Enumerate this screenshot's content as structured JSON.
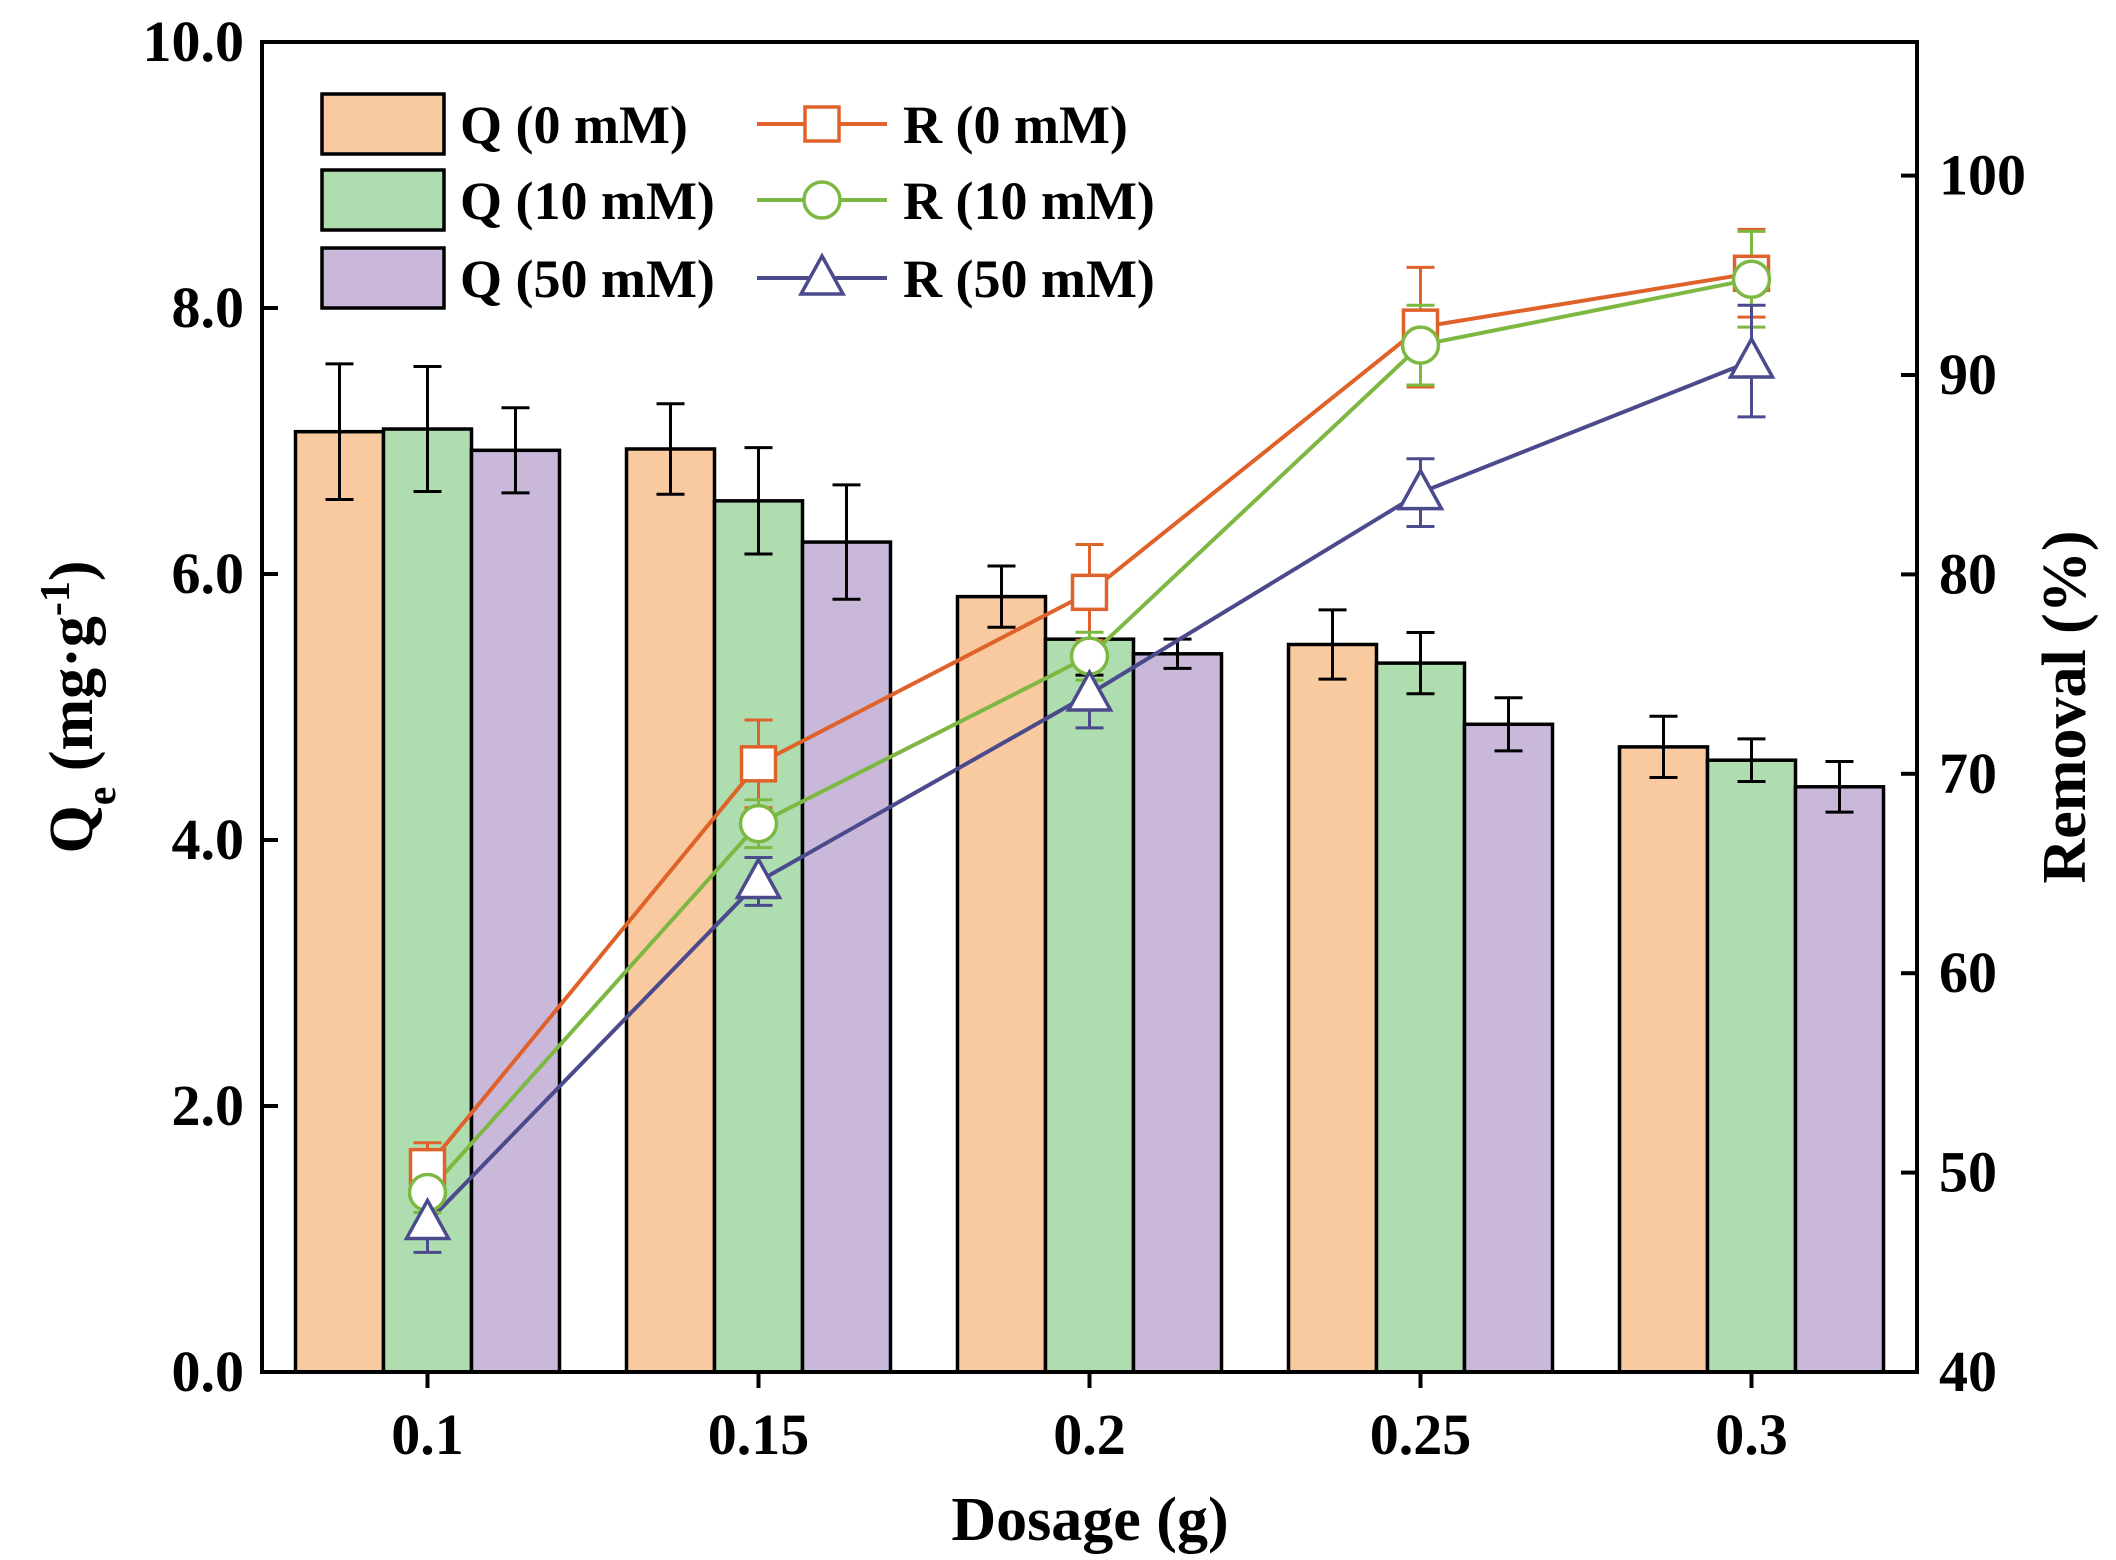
{
  "chart_data": {
    "type": "bar",
    "xlabel": "Dosage (g)",
    "ylabel": {
      "main": "Q",
      "sub": "e",
      "unit_open": " (mg·g",
      "sup": "-1",
      "unit_close": ")"
    },
    "y2label": "Removal (%)",
    "categories": [
      "0.1",
      "0.15",
      "0.2",
      "0.25",
      "0.3"
    ],
    "ylim": [
      0,
      10
    ],
    "y_ticks": [
      "0.0",
      "2.0",
      "4.0",
      "6.0",
      "8.0",
      "10.0"
    ],
    "y2lim": [
      40,
      106.7
    ],
    "y2_ticks": [
      "40",
      "50",
      "60",
      "70",
      "80",
      "90",
      "100"
    ],
    "bar_series": [
      {
        "name": "Q (0 mM)",
        "color": "#F9C9A0",
        "values": [
          7.07,
          6.94,
          5.83,
          5.47,
          4.7
        ],
        "errors": [
          0.51,
          0.34,
          0.23,
          0.26,
          0.23
        ]
      },
      {
        "name": "Q (10 mM)",
        "color": "#AEDEB0",
        "values": [
          7.09,
          6.55,
          5.51,
          5.33,
          4.6
        ],
        "errors": [
          0.47,
          0.4,
          0.27,
          0.23,
          0.16
        ]
      },
      {
        "name": "Q (50 mM)",
        "color": "#C9B8DA",
        "values": [
          6.93,
          6.24,
          5.4,
          4.87,
          4.4
        ],
        "errors": [
          0.32,
          0.43,
          0.11,
          0.2,
          0.19
        ]
      }
    ],
    "line_series": [
      {
        "name": "R (0 mM)",
        "color": "#E0622B",
        "marker": "square",
        "values": [
          50.3,
          70.5,
          79.1,
          92.4,
          95.1
        ],
        "errors": [
          1.2,
          2.2,
          2.4,
          3.0,
          2.2
        ]
      },
      {
        "name": "R (10 mM)",
        "color": "#7DB843",
        "marker": "circle",
        "values": [
          49.0,
          67.5,
          75.9,
          91.5,
          94.8
        ],
        "errors": [
          1.0,
          1.2,
          1.2,
          2.0,
          2.4
        ]
      },
      {
        "name": "R (50 mM)",
        "color": "#4A4A8C",
        "marker": "triangle",
        "values": [
          47.5,
          64.6,
          74.0,
          84.1,
          90.7
        ],
        "errors": [
          1.5,
          1.2,
          1.7,
          1.7,
          2.8
        ]
      }
    ]
  }
}
